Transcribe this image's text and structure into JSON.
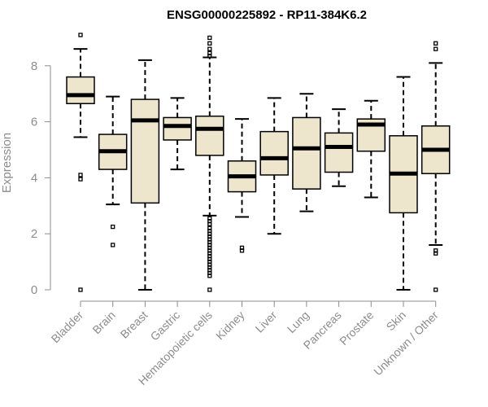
{
  "chart_data": {
    "type": "boxplot",
    "title": "ENSG00000225892 - RP11-384K6.2",
    "xlabel": "",
    "ylabel": "Expression",
    "ylim": [
      0,
      9.5
    ],
    "yticks": [
      0,
      2,
      4,
      6,
      8
    ],
    "box_fill": "#ede6cc",
    "axis_color": "#8c8c8c",
    "categories": [
      "Bladder",
      "Brain",
      "Breast",
      "Gastric",
      "Hematopoietic cells",
      "Kidney",
      "Liver",
      "Lung",
      "Pancreas",
      "Prostate",
      "Skin",
      "Unknown / Other"
    ],
    "boxes": [
      {
        "name": "Bladder",
        "q1": 6.65,
        "median": 6.95,
        "q3": 7.6,
        "whisker_low": 5.45,
        "whisker_high": 8.6,
        "outliers": [
          9.1,
          4.1,
          3.95,
          0.0
        ]
      },
      {
        "name": "Brain",
        "q1": 4.3,
        "median": 4.95,
        "q3": 5.55,
        "whisker_low": 3.05,
        "whisker_high": 6.9,
        "outliers": [
          2.25,
          1.6
        ]
      },
      {
        "name": "Breast",
        "q1": 3.1,
        "median": 6.05,
        "q3": 6.8,
        "whisker_low": 0.0,
        "whisker_high": 8.2,
        "outliers": []
      },
      {
        "name": "Gastric",
        "q1": 5.35,
        "median": 5.85,
        "q3": 6.15,
        "whisker_low": 4.3,
        "whisker_high": 6.85,
        "outliers": []
      },
      {
        "name": "Hematopoietic cells",
        "q1": 4.8,
        "median": 5.75,
        "q3": 6.2,
        "whisker_low": 2.65,
        "whisker_high": 8.3,
        "outliers": [
          9.0,
          8.8,
          8.6,
          8.45,
          8.35,
          2.55,
          2.45,
          2.35,
          2.2,
          2.1,
          2.0,
          1.9,
          1.8,
          1.7,
          1.6,
          1.5,
          1.4,
          1.3,
          1.2,
          1.1,
          1.0,
          0.9,
          0.8,
          0.7,
          0.6,
          0.5,
          0.0
        ]
      },
      {
        "name": "Kidney",
        "q1": 3.5,
        "median": 4.05,
        "q3": 4.6,
        "whisker_low": 2.6,
        "whisker_high": 6.1,
        "outliers": [
          1.5,
          1.4
        ]
      },
      {
        "name": "Liver",
        "q1": 4.1,
        "median": 4.7,
        "q3": 5.65,
        "whisker_low": 2.0,
        "whisker_high": 6.85,
        "outliers": []
      },
      {
        "name": "Lung",
        "q1": 3.6,
        "median": 5.05,
        "q3": 6.15,
        "whisker_low": 2.8,
        "whisker_high": 7.0,
        "outliers": []
      },
      {
        "name": "Pancreas",
        "q1": 4.2,
        "median": 5.1,
        "q3": 5.6,
        "whisker_low": 3.7,
        "whisker_high": 6.45,
        "outliers": []
      },
      {
        "name": "Prostate",
        "q1": 4.95,
        "median": 5.9,
        "q3": 6.1,
        "whisker_low": 3.3,
        "whisker_high": 6.75,
        "outliers": []
      },
      {
        "name": "Skin",
        "q1": 2.75,
        "median": 4.15,
        "q3": 5.5,
        "whisker_low": 0.0,
        "whisker_high": 7.6,
        "outliers": []
      },
      {
        "name": "Unknown / Other",
        "q1": 4.15,
        "median": 5.0,
        "q3": 5.85,
        "whisker_low": 1.6,
        "whisker_high": 8.1,
        "outliers": [
          8.8,
          8.6,
          1.4,
          1.3,
          0.0
        ]
      }
    ]
  }
}
